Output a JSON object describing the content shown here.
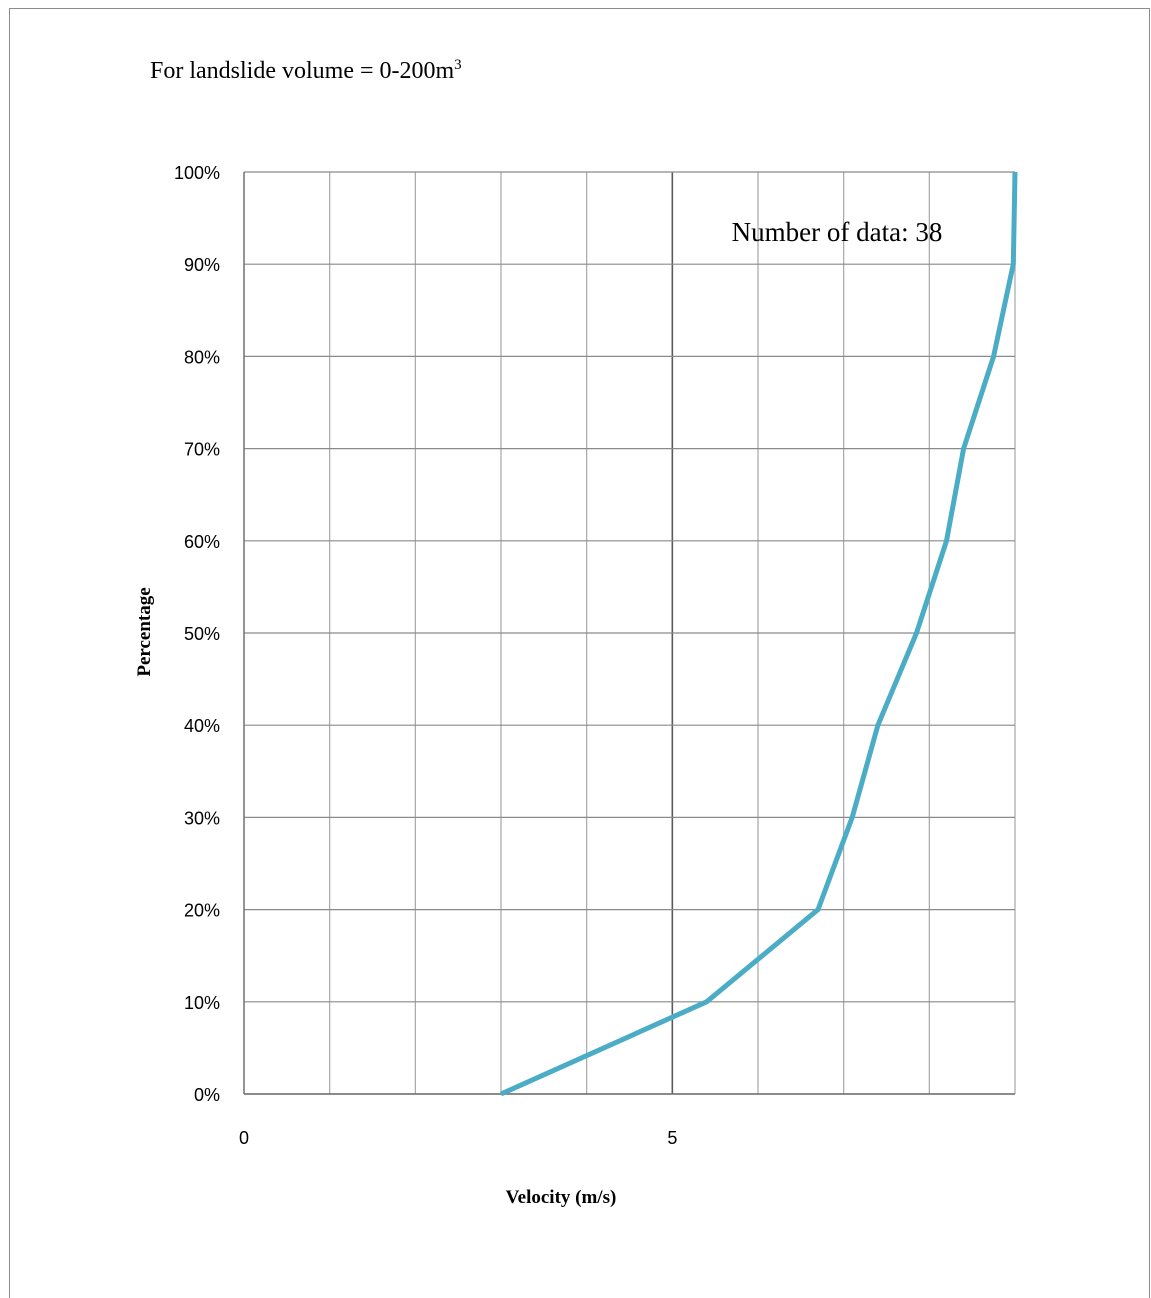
{
  "caption": {
    "prefix": "For landslide volume = 0-200m",
    "superscript": "3"
  },
  "chart_data": {
    "type": "line",
    "title": "",
    "xlabel": "Velocity (m/s)",
    "ylabel": "Percentage",
    "xlim": [
      0,
      9
    ],
    "ylim": [
      0,
      100
    ],
    "x_ticks": [
      {
        "value": 0,
        "label": "0"
      },
      {
        "value": 5,
        "label": "5"
      }
    ],
    "y_ticks": [
      {
        "value": 0,
        "label": "0%"
      },
      {
        "value": 10,
        "label": "10%"
      },
      {
        "value": 20,
        "label": "20%"
      },
      {
        "value": 30,
        "label": "30%"
      },
      {
        "value": 40,
        "label": "40%"
      },
      {
        "value": 50,
        "label": "50%"
      },
      {
        "value": 60,
        "label": "60%"
      },
      {
        "value": 70,
        "label": "70%"
      },
      {
        "value": 80,
        "label": "80%"
      },
      {
        "value": 90,
        "label": "90%"
      },
      {
        "value": 100,
        "label": "100%"
      }
    ],
    "x_gridlines": [
      0,
      1,
      2,
      3,
      4,
      5,
      6,
      7,
      8,
      9
    ],
    "grid": true,
    "annotation": "Number of data: 38",
    "series": [
      {
        "color": "#4bacc6",
        "x": [
          3.0,
          5.4,
          6.7,
          7.1,
          7.4,
          7.85,
          8.2,
          8.4,
          8.75,
          8.98,
          9.0
        ],
        "y": [
          0,
          10,
          20,
          30,
          40,
          50,
          60,
          70,
          80,
          90,
          100
        ]
      }
    ]
  }
}
